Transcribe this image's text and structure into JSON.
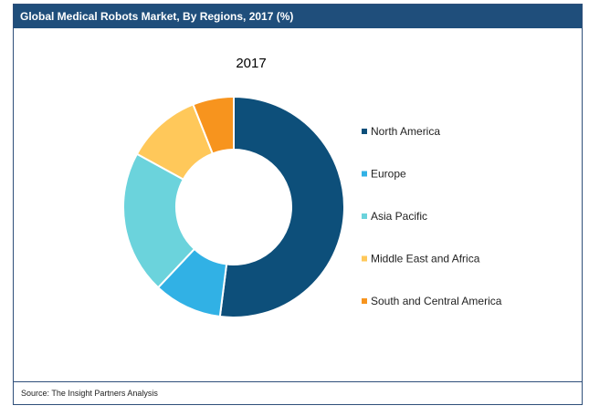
{
  "header": {
    "title": "Global Medical Robots Market, By Regions, 2017 (%)"
  },
  "footer": {
    "source": "Source: The Insight Partners Analysis"
  },
  "colors": {
    "header_bg": "#1f4e7b",
    "border": "#2f4f7a"
  },
  "chart_data": {
    "type": "pie",
    "donut": true,
    "title": "2017",
    "categories": [
      "North America",
      "Europe",
      "Asia Pacific",
      "Middle East and Africa",
      "South and Central America"
    ],
    "values": [
      52,
      10,
      21,
      11,
      6
    ],
    "colors": [
      "#0d4f7a",
      "#31b1e5",
      "#6bd3dc",
      "#ffc85a",
      "#f7941e"
    ],
    "legend_position": "right"
  }
}
